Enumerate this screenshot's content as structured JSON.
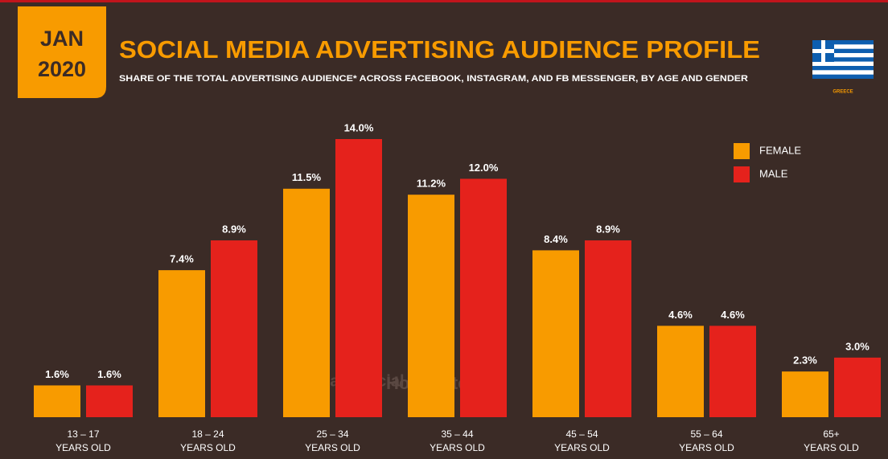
{
  "badge": {
    "month": "JAN",
    "year": "2020"
  },
  "flag_label": "GREECE",
  "watermark": [
    "we are social",
    "Hootsuite"
  ],
  "chart_data": {
    "type": "bar",
    "title": "SOCIAL MEDIA ADVERTISING AUDIENCE PROFILE",
    "subtitle": "SHARE OF THE TOTAL ADVERTISING AUDIENCE* ACROSS FACEBOOK, INSTAGRAM, AND FB MESSENGER, BY AGE AND GENDER",
    "categories": [
      [
        "13 – 17",
        "YEARS OLD"
      ],
      [
        "18 – 24",
        "YEARS OLD"
      ],
      [
        "25 – 34",
        "YEARS OLD"
      ],
      [
        "35 – 44",
        "YEARS OLD"
      ],
      [
        "45 – 54",
        "YEARS OLD"
      ],
      [
        "55 – 64",
        "YEARS OLD"
      ],
      [
        "65+",
        "YEARS OLD"
      ]
    ],
    "series": [
      {
        "name": "FEMALE",
        "color": "#f89b00",
        "values": [
          1.6,
          7.4,
          11.5,
          11.2,
          8.4,
          4.6,
          2.3
        ],
        "value_labels": [
          "1.6%",
          "7.4%",
          "11.5%",
          "11.2%",
          "8.4%",
          "4.6%",
          "2.3%"
        ]
      },
      {
        "name": "MALE",
        "color": "#e5221c",
        "values": [
          1.6,
          8.9,
          14.0,
          12.0,
          8.9,
          4.6,
          3.0
        ],
        "value_labels": [
          "1.6%",
          "8.9%",
          "14.0%",
          "12.0%",
          "8.9%",
          "4.6%",
          "3.0%"
        ]
      }
    ],
    "legend": "top-right"
  }
}
